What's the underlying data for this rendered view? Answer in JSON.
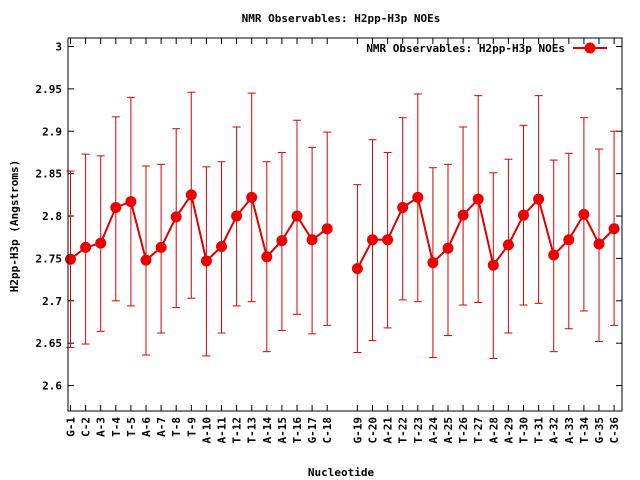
{
  "chart_data": {
    "type": "line",
    "title": "NMR Observables: H2pp-H3p NOEs",
    "xlabel": "Nucleotide",
    "ylabel": "H2pp-H3p (Angstroms)",
    "ylim": [
      2.57,
      3.01
    ],
    "y_ticks": [
      2.6,
      2.65,
      2.7,
      2.75,
      2.8,
      2.85,
      2.9,
      2.95,
      3
    ],
    "y_tick_labels": [
      "2.6",
      "2.65",
      "2.7",
      "2.75",
      "2.8",
      "2.85",
      "2.9",
      "2.95",
      "3"
    ],
    "legend_position": "top-right",
    "grid": false,
    "line_color": "#dd0000",
    "categories": [
      "G-1",
      "C-2",
      "A-3",
      "T-4",
      "T-5",
      "A-6",
      "A-7",
      "T-8",
      "T-9",
      "A-10",
      "A-11",
      "T-12",
      "T-13",
      "A-14",
      "A-15",
      "T-16",
      "G-17",
      "C-18",
      "G-19",
      "C-20",
      "A-21",
      "T-22",
      "T-23",
      "A-24",
      "A-25",
      "T-26",
      "T-27",
      "A-28",
      "A-29",
      "T-30",
      "T-31",
      "A-32",
      "A-33",
      "T-34",
      "G-35",
      "C-36"
    ],
    "series": [
      {
        "name": "NMR Observables: H2pp-H3p NOEs",
        "values": [
          2.749,
          2.763,
          2.768,
          2.81,
          2.817,
          2.748,
          2.763,
          2.799,
          2.825,
          2.747,
          2.764,
          2.8,
          2.822,
          2.752,
          2.771,
          2.8,
          2.772,
          2.785,
          2.738,
          2.772,
          2.772,
          2.81,
          2.822,
          2.745,
          2.762,
          2.801,
          2.82,
          2.742,
          2.766,
          2.801,
          2.82,
          2.754,
          2.772,
          2.802,
          2.767,
          2.785
        ],
        "err_low": [
          2.645,
          2.649,
          2.664,
          2.7,
          2.694,
          2.636,
          2.662,
          2.692,
          2.703,
          2.635,
          2.662,
          2.694,
          2.699,
          2.64,
          2.665,
          2.684,
          2.661,
          2.671,
          2.639,
          2.653,
          2.668,
          2.701,
          2.699,
          2.633,
          2.659,
          2.695,
          2.698,
          2.632,
          2.662,
          2.695,
          2.697,
          2.64,
          2.667,
          2.688,
          2.652,
          2.671
        ],
        "err_high": [
          2.853,
          2.873,
          2.871,
          2.917,
          2.94,
          2.859,
          2.861,
          2.903,
          2.946,
          2.858,
          2.864,
          2.905,
          2.945,
          2.864,
          2.875,
          2.913,
          2.881,
          2.899,
          2.837,
          2.89,
          2.875,
          2.916,
          2.944,
          2.857,
          2.861,
          2.905,
          2.942,
          2.851,
          2.867,
          2.907,
          2.942,
          2.866,
          2.874,
          2.916,
          2.879,
          2.9
        ]
      }
    ]
  }
}
